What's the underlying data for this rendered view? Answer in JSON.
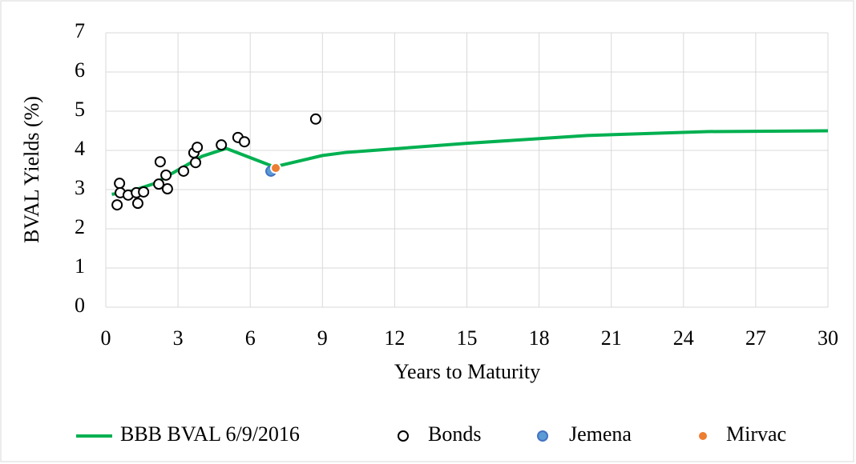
{
  "chart_data": {
    "type": "scatter",
    "x_label": "Years to Maturity",
    "y_label": "BVAL Yields (%)",
    "xlim": [
      0,
      30
    ],
    "xticks": [
      0,
      3,
      6,
      9,
      12,
      15,
      18,
      21,
      24,
      27,
      30
    ],
    "ylim": [
      0,
      7
    ],
    "yticks": [
      0,
      1,
      2,
      3,
      4,
      5,
      6,
      7
    ],
    "grid": true,
    "legend": "bottom",
    "series": [
      {
        "name": "BBB BVAL 6/9/2016",
        "type": "line",
        "color": "#00b050",
        "x": [
          0.25,
          1,
          2,
          3,
          4,
          5,
          7,
          9,
          10,
          15,
          20,
          25,
          30
        ],
        "values": [
          2.88,
          2.95,
          3.15,
          3.5,
          3.85,
          4.05,
          3.58,
          3.87,
          3.95,
          4.18,
          4.38,
          4.48,
          4.5
        ]
      },
      {
        "name": "Bonds",
        "type": "scatter",
        "color": "#000000",
        "fill": "#ffffff",
        "x": [
          0.47,
          0.57,
          0.6,
          0.93,
          1.27,
          1.33,
          1.57,
          2.2,
          2.26,
          2.5,
          2.56,
          3.23,
          3.66,
          3.8,
          3.73,
          4.8,
          5.49,
          5.76,
          8.72
        ],
        "values": [
          2.61,
          3.16,
          2.92,
          2.86,
          2.92,
          2.65,
          2.94,
          3.14,
          3.71,
          3.37,
          3.02,
          3.47,
          3.94,
          4.08,
          3.69,
          4.14,
          4.33,
          4.22,
          4.8
        ]
      },
      {
        "name": "Jemena",
        "type": "scatter",
        "color": "#4472c4",
        "fill": "#5b9bd5",
        "x": [
          6.86
        ],
        "values": [
          3.47
        ]
      },
      {
        "name": "Mirvac",
        "type": "scatter",
        "color": "#ffffff",
        "fill": "#ed7d31",
        "x": [
          7.06
        ],
        "values": [
          3.55
        ]
      }
    ]
  }
}
